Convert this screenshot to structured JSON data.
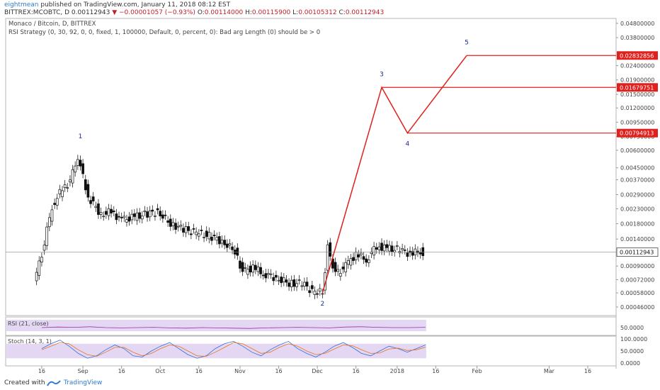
{
  "header": {
    "author": "eightmean",
    "published": "published on TradingView.com, January 11, 2018 08:12 EST",
    "symbol": "BITTREX:MCOBTC, D",
    "last": "0.00112943",
    "change_arrow": "▼",
    "change": "−0.00001057 (−0.93%)",
    "o_label": "O:",
    "o_val": "0.00114000",
    "h_label": "H:",
    "h_val": "0.00115900",
    "l_label": "L:",
    "l_val": "0.00105312",
    "c_label": "C:",
    "c_val": "0.00112943"
  },
  "legend": {
    "line1": "Monaco / Bitcoin, D, BITTREX",
    "line2": "RSI Strategy (0, 30, 92, 0, 0, fixed, 1, 100000, Default, 0, percent, 0): Bad arg Length (0) should be > 0"
  },
  "footer": {
    "created_with": "Created with",
    "brand": "TradingView"
  },
  "chart_data": [
    {
      "type": "candlestick",
      "title": "Monaco / Bitcoin, D, BITTREX",
      "y_scale": "log",
      "y_ticks": [
        "0.04800000",
        "0.03800000",
        "0.02400000",
        "0.01900000",
        "0.01500000",
        "0.01200000",
        "0.00950000",
        "0.00750000",
        "0.00600000",
        "0.00450000",
        "0.00370000",
        "0.00290000",
        "0.00230000",
        "0.00180000",
        "0.00140000",
        "0.00090000",
        "0.00072000",
        "0.00058000",
        "0.00046000"
      ],
      "y_tick_values": [
        0.048,
        0.038,
        0.024,
        0.019,
        0.015,
        0.012,
        0.0095,
        0.0075,
        0.006,
        0.0045,
        0.0037,
        0.0029,
        0.0023,
        0.0018,
        0.0014,
        0.0009,
        0.00072,
        0.00058,
        0.00046
      ],
      "x_ticks": [
        "16",
        "Sep",
        "16",
        "Oct",
        "16",
        "Nov",
        "16",
        "Dec",
        "16",
        "2018",
        "16",
        "Feb",
        "Mar",
        "16"
      ],
      "x_tick_dates": [
        "2017-08-16",
        "2017-09-01",
        "2017-09-16",
        "2017-10-01",
        "2017-10-16",
        "2017-11-01",
        "2017-11-16",
        "2017-12-01",
        "2017-12-16",
        "2018-01-01",
        "2018-01-16",
        "2018-02-01",
        "2018-03-01",
        "2018-03-16"
      ],
      "last_price_label": "0.00112943",
      "last_price": 0.00112943,
      "close_series_approx": {
        "dates": [
          "2017-08-13",
          "2017-08-16",
          "2017-08-20",
          "2017-08-24",
          "2017-08-27",
          "2017-08-30",
          "2017-09-03",
          "2017-09-08",
          "2017-09-12",
          "2017-09-16",
          "2017-09-20",
          "2017-09-25",
          "2017-09-30",
          "2017-10-05",
          "2017-10-10",
          "2017-10-15",
          "2017-10-20",
          "2017-10-25",
          "2017-10-30",
          "2017-11-02",
          "2017-11-06",
          "2017-11-10",
          "2017-11-15",
          "2017-11-20",
          "2017-11-25",
          "2017-11-30",
          "2017-12-03",
          "2017-12-05",
          "2017-12-08",
          "2017-12-12",
          "2017-12-16",
          "2017-12-20",
          "2017-12-24",
          "2017-12-28",
          "2018-01-02",
          "2018-01-06",
          "2018-01-10",
          "2018-01-11"
        ],
        "values": [
          0.00068,
          0.0011,
          0.0024,
          0.0032,
          0.0036,
          0.0054,
          0.0028,
          0.0021,
          0.0022,
          0.0019,
          0.002,
          0.0021,
          0.0022,
          0.0018,
          0.00165,
          0.00155,
          0.00148,
          0.00135,
          0.00115,
          0.00082,
          0.00088,
          0.0008,
          0.00074,
          0.00068,
          0.00068,
          0.00058,
          0.00059,
          0.00125,
          0.00078,
          0.0009,
          0.0011,
          0.001,
          0.00125,
          0.0012,
          0.00118,
          0.0011,
          0.00115,
          0.00112943
        ]
      },
      "projection": {
        "points": [
          {
            "label": "2",
            "date": "2017-12-03",
            "value": 0.00058
          },
          {
            "label": "3",
            "date": "2017-12-26",
            "value": 0.01679751
          },
          {
            "label": "4",
            "date": "2018-01-05",
            "value": 0.00794913
          },
          {
            "label": "5",
            "date": "2018-01-28",
            "value": 0.02832856
          }
        ],
        "levels": [
          "0.02832856",
          "0.01679751",
          "0.00794913"
        ],
        "level_values": [
          0.02832856,
          0.01679751,
          0.00794913
        ],
        "wave1_label": "1",
        "wave1_date": "2017-08-31",
        "wave1_value": 0.0058,
        "color": "#e0201c"
      }
    },
    {
      "type": "line",
      "title": "RSI (21, close)",
      "y_ticks": [
        "50.0000"
      ],
      "band_color": "#d9c6f0",
      "series": [
        {
          "values": [
            50,
            52,
            51,
            53,
            50,
            49,
            50,
            51,
            49,
            48,
            50,
            49,
            48,
            47,
            49,
            50,
            51,
            50,
            49,
            52,
            53,
            51,
            50,
            50,
            51
          ]
        }
      ]
    },
    {
      "type": "line",
      "title": "Stoch (14, 3, 1)",
      "y_ticks": [
        "100.0000",
        "50.0000",
        "0.0000"
      ],
      "band_color": "#d9c6f0",
      "series": [
        {
          "values": [
            60,
            80,
            95,
            70,
            40,
            20,
            30,
            55,
            75,
            60,
            30,
            25,
            50,
            70,
            85,
            60,
            35,
            20,
            30,
            60,
            80,
            90,
            70,
            45,
            30,
            55,
            75,
            90,
            60,
            40,
            25,
            45,
            70,
            85,
            65,
            40,
            30,
            50,
            70,
            60,
            45,
            60,
            75
          ]
        },
        {
          "values": [
            55,
            70,
            85,
            80,
            55,
            35,
            28,
            45,
            65,
            65,
            45,
            30,
            40,
            60,
            75,
            70,
            50,
            30,
            28,
            45,
            65,
            85,
            80,
            60,
            40,
            45,
            65,
            80,
            70,
            50,
            35,
            40,
            58,
            75,
            72,
            55,
            40,
            42,
            58,
            62,
            52,
            55,
            66
          ]
        }
      ]
    }
  ]
}
